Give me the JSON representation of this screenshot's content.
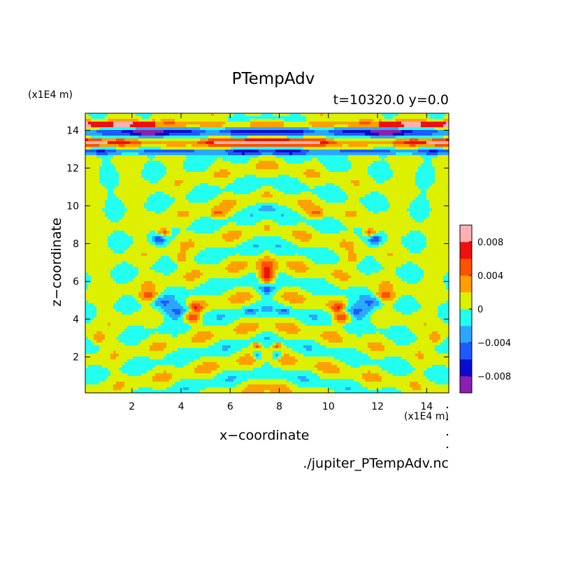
{
  "chart_data": {
    "type": "heatmap",
    "title": "PTempAdv",
    "subtitle": "t=10320.0  y=0.0",
    "xlabel": "x−coordinate",
    "ylabel": "z−coordinate",
    "x_multiplier": "(x1E4 m)",
    "y_multiplier": "(x1E4 m)",
    "source_file": "./jupiter_PTempAdv.nc",
    "xlim": [
      0.1,
      14.9
    ],
    "ylim": [
      0.1,
      14.9
    ],
    "xticks": [
      2,
      4,
      6,
      8,
      10,
      12,
      14
    ],
    "yticks": [
      2,
      4,
      6,
      8,
      10,
      12,
      14
    ],
    "colorbar": {
      "levels": [
        -0.01,
        -0.008,
        -0.006,
        -0.004,
        -0.002,
        0,
        0.002,
        0.004,
        0.006,
        0.008,
        0.01
      ],
      "colors": [
        "#8b1faf",
        "#0a0ad0",
        "#1e5aff",
        "#2aa8ff",
        "#22ffee",
        "#ddf000",
        "#ffa000",
        "#ff5200",
        "#ee1010",
        "#ffb0b0"
      ],
      "tick_values": [
        -0.008,
        -0.004,
        0,
        0.004,
        0.008
      ],
      "tick_labels": [
        "−0.008",
        "−0.004",
        "0",
        "0.004",
        "0.008"
      ]
    },
    "features": [
      {
        "x": 7.5,
        "z": 6.4,
        "sx": 0.35,
        "sy": 0.6,
        "a": 0.009
      },
      {
        "x": 7.5,
        "z": 5.6,
        "sx": 0.35,
        "sy": 0.3,
        "a": -0.008
      },
      {
        "x": 4.4,
        "z": 4.1,
        "sx": 0.35,
        "sy": 0.3,
        "a": 0.008
      },
      {
        "x": 10.6,
        "z": 4.1,
        "sx": 0.35,
        "sy": 0.3,
        "a": 0.008
      },
      {
        "x": 4.6,
        "z": 4.6,
        "sx": 0.3,
        "sy": 0.25,
        "a": 0.006
      },
      {
        "x": 10.4,
        "z": 4.6,
        "sx": 0.3,
        "sy": 0.25,
        "a": 0.006
      },
      {
        "x": 4.0,
        "z": 4.4,
        "sx": 0.8,
        "sy": 0.4,
        "a": -0.006
      },
      {
        "x": 11.0,
        "z": 4.4,
        "sx": 0.8,
        "sy": 0.4,
        "a": -0.006
      },
      {
        "x": 3.3,
        "z": 8.6,
        "sx": 0.25,
        "sy": 0.25,
        "a": 0.006
      },
      {
        "x": 11.7,
        "z": 8.6,
        "sx": 0.25,
        "sy": 0.25,
        "a": 0.006
      },
      {
        "x": 3.1,
        "z": 8.2,
        "sx": 0.3,
        "sy": 0.25,
        "a": -0.005
      },
      {
        "x": 11.9,
        "z": 8.2,
        "sx": 0.3,
        "sy": 0.25,
        "a": -0.005
      },
      {
        "x": 2.7,
        "z": 5.2,
        "sx": 0.4,
        "sy": 0.3,
        "a": 0.005
      },
      {
        "x": 12.3,
        "z": 5.2,
        "sx": 0.4,
        "sy": 0.3,
        "a": 0.005
      },
      {
        "x": 3.2,
        "z": 4.9,
        "sx": 0.4,
        "sy": 0.3,
        "a": -0.004
      },
      {
        "x": 11.8,
        "z": 4.9,
        "sx": 0.4,
        "sy": 0.3,
        "a": -0.004
      },
      {
        "x": 7.1,
        "z": 2.1,
        "sx": 0.2,
        "sy": 0.2,
        "a": -0.006
      },
      {
        "x": 7.9,
        "z": 2.1,
        "sx": 0.2,
        "sy": 0.2,
        "a": -0.006
      },
      {
        "x": 7.1,
        "z": 2.6,
        "sx": 0.2,
        "sy": 0.2,
        "a": 0.005
      },
      {
        "x": 7.9,
        "z": 2.6,
        "sx": 0.2,
        "sy": 0.2,
        "a": 0.005
      },
      {
        "x": 6.8,
        "z": 4.4,
        "sx": 0.2,
        "sy": 0.2,
        "a": -0.004
      },
      {
        "x": 8.2,
        "z": 4.4,
        "sx": 0.2,
        "sy": 0.2,
        "a": -0.004
      },
      {
        "x": 7.5,
        "z": 10.0,
        "sx": 0.4,
        "sy": 0.3,
        "a": -0.003
      },
      {
        "x": 5.5,
        "z": 9.6,
        "sx": 0.3,
        "sy": 0.25,
        "a": 0.004
      },
      {
        "x": 9.5,
        "z": 9.6,
        "sx": 0.3,
        "sy": 0.25,
        "a": 0.004
      },
      {
        "x": 0.6,
        "z": 3.0,
        "sx": 0.3,
        "sy": 0.3,
        "a": 0.004
      },
      {
        "x": 14.4,
        "z": 3.0,
        "sx": 0.3,
        "sy": 0.3,
        "a": 0.004
      },
      {
        "x": 4.0,
        "z": 7.2,
        "sx": 0.35,
        "sy": 0.3,
        "a": 0.003
      },
      {
        "x": 11.0,
        "z": 7.2,
        "sx": 0.35,
        "sy": 0.3,
        "a": 0.003
      }
    ]
  }
}
